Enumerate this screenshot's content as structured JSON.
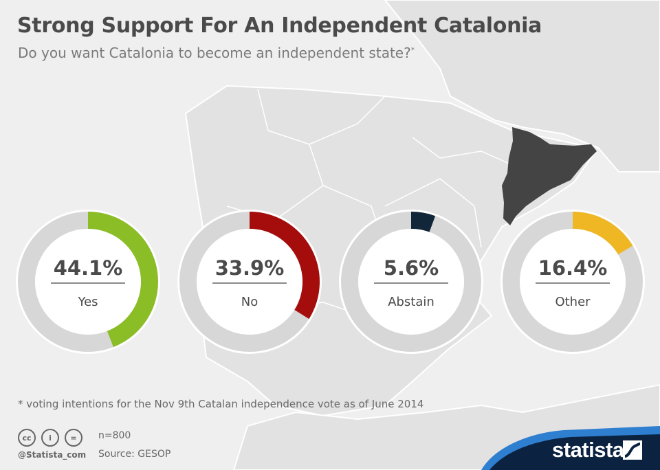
{
  "header": {
    "title": "Strong Support For An Independent Catalonia",
    "subtitle": "Do you want Catalonia to become an independent state?",
    "subtitle_mark": "*"
  },
  "chart_data": {
    "type": "pie",
    "title": "Strong Support For An Independent Catalonia",
    "subtitle": "Do you want Catalonia to become an independent state?*",
    "categories": [
      "Yes",
      "No",
      "Abstain",
      "Other"
    ],
    "values": [
      44.1,
      33.9,
      5.6,
      16.4
    ],
    "labels": [
      "44.1%",
      "33.9%",
      "5.6%",
      "16.4%"
    ],
    "colors": [
      "#8bbd26",
      "#a50d0d",
      "#12263a",
      "#efb724"
    ],
    "track_color": "#d7d7d7",
    "style": "separate donut per category"
  },
  "footer": {
    "footnote": "* voting intentions for the Nov 9th Catalan independence vote as of June 2014",
    "license_icons": [
      "cc-icon",
      "attribution-icon",
      "no-derivatives-icon"
    ],
    "license_glyphs": [
      "cc",
      "i",
      "="
    ],
    "handle": "@Statista_com",
    "sample": "n=800",
    "source": "Source: GESOP"
  },
  "brand": {
    "name": "statista",
    "band_color": "#0b2340",
    "accent_color": "#2f7fd1"
  }
}
